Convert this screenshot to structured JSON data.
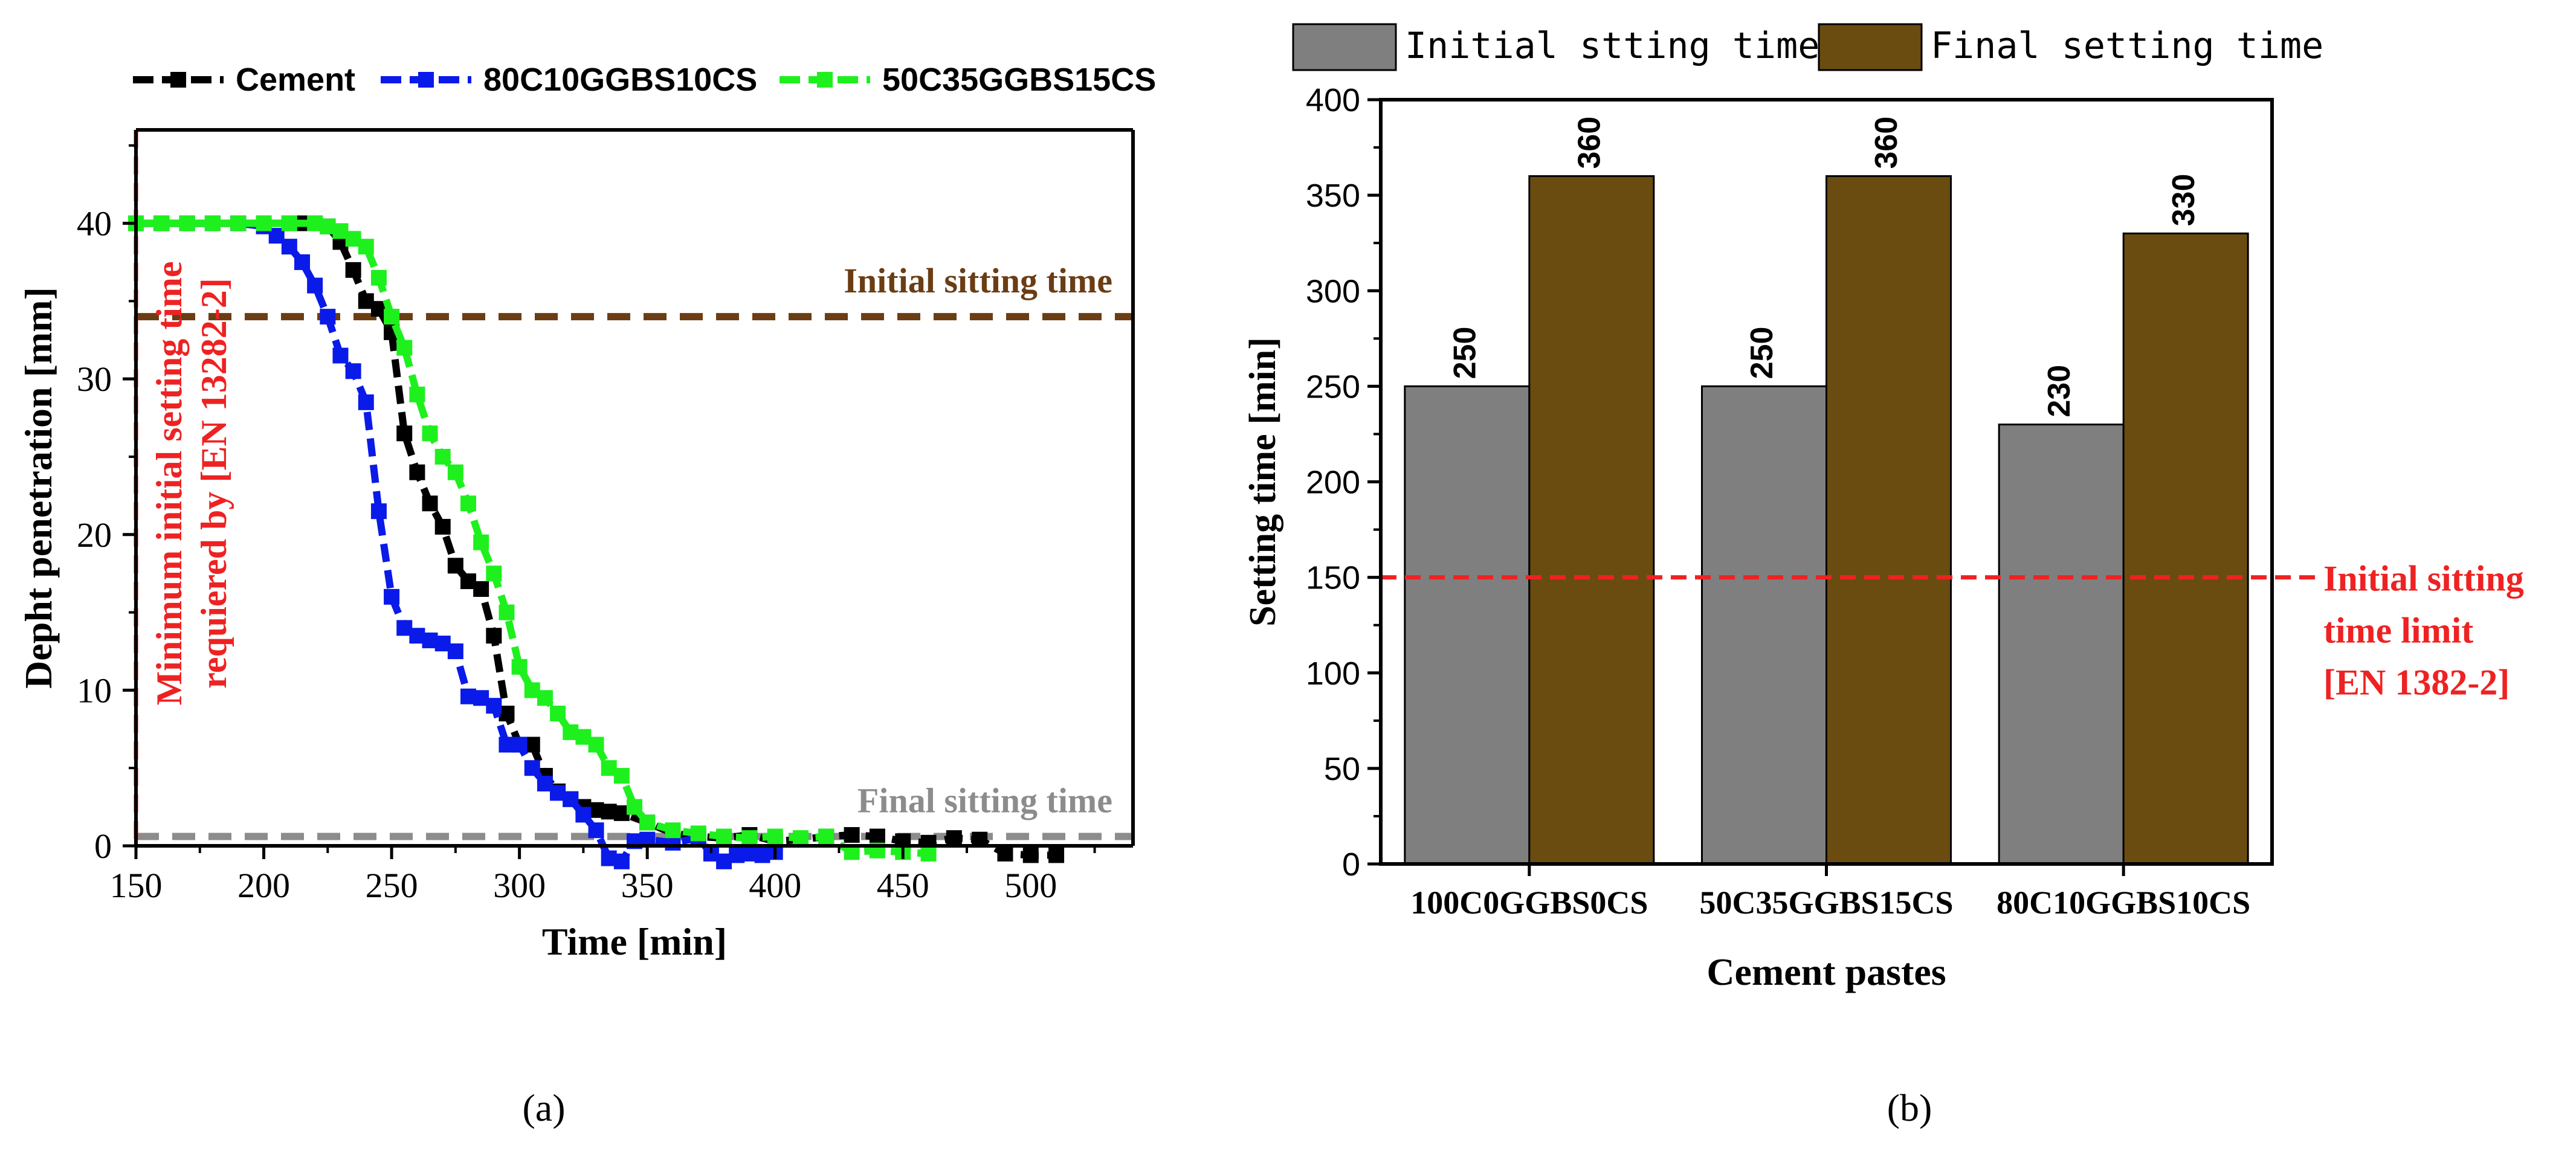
{
  "panel_labels": {
    "a": "(a)",
    "b": "(b)"
  },
  "chart_data": [
    {
      "type": "line",
      "xlabel": "Time [min]",
      "ylabel": "Depht penetration [mm]",
      "xlim": [
        150,
        540
      ],
      "ylim": [
        0,
        46
      ],
      "xticks": [
        150,
        200,
        250,
        300,
        350,
        400,
        450,
        500
      ],
      "yticks": [
        0,
        10,
        20,
        30,
        40
      ],
      "legend_placement": "top",
      "series": [
        {
          "name": "Cement",
          "color": "#000000",
          "x": [
            150,
            160,
            170,
            180,
            190,
            200,
            210,
            215,
            220,
            225,
            230,
            235,
            240,
            245,
            250,
            255,
            260,
            265,
            270,
            275,
            280,
            285,
            290,
            295,
            300,
            305,
            310,
            315,
            320,
            325,
            330,
            335,
            340,
            350,
            360,
            370,
            380,
            390,
            400,
            410,
            420,
            430,
            440,
            450,
            460,
            470,
            480,
            490,
            500,
            510
          ],
          "y": [
            40,
            40,
            40,
            40,
            40,
            40,
            40,
            40,
            40,
            39.8,
            38.8,
            37,
            35,
            34.5,
            33,
            26.5,
            24,
            22,
            20.5,
            18,
            17,
            16.5,
            13.5,
            8.5,
            6.5,
            6.5,
            4.5,
            3.5,
            3,
            2.5,
            2.3,
            2.2,
            2.1,
            1.5,
            0.8,
            0.6,
            0.5,
            0.7,
            0.3,
            0.4,
            0.6,
            0.7,
            0.6,
            0.3,
            0.2,
            0.5,
            0.4,
            -0.5,
            -0.6,
            -0.6
          ]
        },
        {
          "name": "80C10GGBS10CS",
          "color": "#0a1ae8",
          "x": [
            150,
            160,
            170,
            180,
            190,
            200,
            205,
            210,
            215,
            220,
            225,
            230,
            235,
            240,
            245,
            250,
            255,
            260,
            265,
            270,
            275,
            280,
            285,
            290,
            295,
            300,
            305,
            310,
            315,
            320,
            325,
            330,
            335,
            340,
            345,
            350,
            360,
            370,
            375,
            380,
            385,
            390,
            395,
            400
          ],
          "y": [
            40,
            40,
            40,
            40,
            40,
            39.8,
            39.2,
            38.5,
            37.5,
            36,
            34,
            31.5,
            30.5,
            28.5,
            21.5,
            16,
            14,
            13.5,
            13.2,
            13,
            12.5,
            9.6,
            9.5,
            9,
            6.5,
            6.5,
            5,
            4,
            3.4,
            3,
            2,
            1,
            -0.8,
            -1,
            0.3,
            0.4,
            0.2,
            0.5,
            -0.5,
            -1,
            -0.6,
            -0.5,
            -0.6,
            -0.4
          ]
        },
        {
          "name": "50C35GGBS15CS",
          "color": "#1ef01e",
          "x": [
            150,
            160,
            170,
            180,
            190,
            200,
            210,
            220,
            225,
            230,
            235,
            240,
            245,
            250,
            255,
            260,
            265,
            270,
            275,
            280,
            285,
            290,
            295,
            300,
            305,
            310,
            315,
            320,
            325,
            330,
            335,
            340,
            345,
            350,
            360,
            370,
            380,
            390,
            400,
            410,
            420,
            430,
            440,
            450,
            460
          ],
          "y": [
            40,
            40,
            40,
            40,
            40,
            40,
            40,
            40,
            39.8,
            39.5,
            39,
            38.5,
            36.5,
            34,
            32,
            29,
            26.5,
            25,
            24,
            22,
            19.5,
            17.5,
            15,
            11.5,
            10,
            9.5,
            8.5,
            7.3,
            7,
            6.5,
            5,
            4.5,
            2.5,
            1.5,
            1,
            0.8,
            0.6,
            0.5,
            0.6,
            0.5,
            0.6,
            -0.4,
            -0.3,
            -0.4,
            -0.5
          ]
        }
      ],
      "reference_lines": [
        {
          "label": "Initial sitting time",
          "orientation": "horizontal",
          "value": 34,
          "color": "#6b3d14"
        },
        {
          "label": "Final sitting time",
          "orientation": "horizontal",
          "value": 0.6,
          "color": "#8c8c8c"
        },
        {
          "label": "Minimum initial setting time\nrequiered by [EN 13282-2]",
          "orientation": "vertical",
          "value": 150,
          "color": "#ee2222"
        }
      ]
    },
    {
      "type": "bar",
      "xlabel": "Cement pastes",
      "ylabel": "Setting time [min]",
      "ylim": [
        0,
        400
      ],
      "yticks": [
        0,
        50,
        100,
        150,
        200,
        250,
        300,
        350,
        400
      ],
      "categories": [
        "100C0GGBS0CS",
        "50C35GGBS15CS",
        "80C10GGBS10CS"
      ],
      "legend_placement": "top",
      "series": [
        {
          "name": "Initial stting time",
          "color": "#7f7f7f",
          "values": [
            250,
            250,
            230
          ]
        },
        {
          "name": "Final setting time",
          "color": "#6b4c10",
          "values": [
            360,
            360,
            330
          ]
        }
      ],
      "reference_lines": [
        {
          "label": "Initial sitting\ntime  limit\n[EN 1382-2]",
          "orientation": "horizontal",
          "value": 150,
          "color": "#ee2222"
        }
      ]
    }
  ]
}
